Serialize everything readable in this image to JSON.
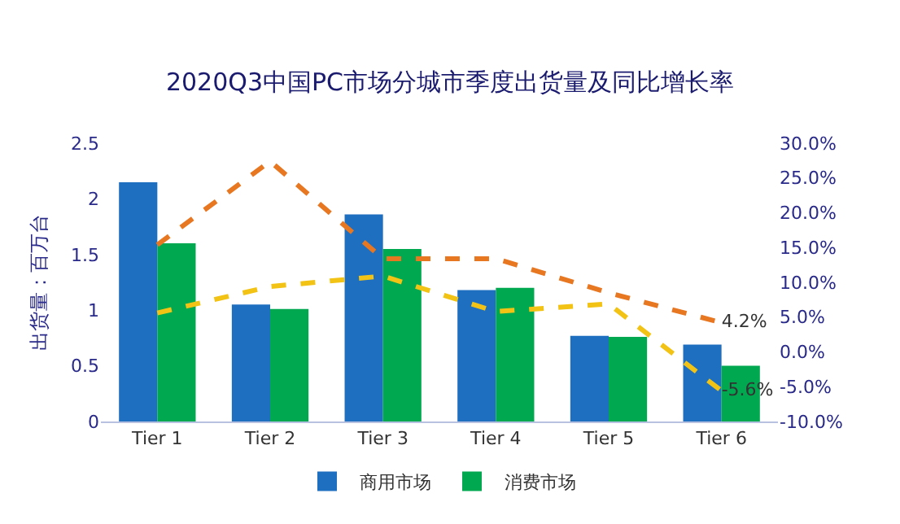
{
  "chart_data": {
    "type": "bar",
    "title": "2020Q3中国PC市场分城市季度出货量及同比增长率",
    "ylabel": "出货量：百万台",
    "categories": [
      "Tier 1",
      "Tier 2",
      "Tier 3",
      "Tier 4",
      "Tier 5",
      "Tier 6"
    ],
    "series": [
      {
        "name": "商用市场",
        "color": "#1f6fc0",
        "values": [
          2.15,
          1.05,
          1.86,
          1.18,
          0.77,
          0.69
        ]
      },
      {
        "name": "消费市场",
        "color": "#00a84f",
        "values": [
          1.6,
          1.01,
          1.55,
          1.2,
          0.76,
          0.5
        ]
      },
      {
        "type": "line",
        "axis": "y2",
        "color": "#e87722",
        "line_style": "dashed",
        "values": [
          15.4,
          27.4,
          13.4,
          13.4,
          8.5,
          4.2
        ],
        "value_labels": [
          null,
          null,
          null,
          null,
          null,
          "4.2%"
        ]
      },
      {
        "type": "line",
        "axis": "y2",
        "color": "#f2c314",
        "line_style": "dashed",
        "values": [
          5.6,
          9.4,
          10.9,
          5.8,
          6.9,
          -5.6
        ],
        "value_labels": [
          null,
          null,
          null,
          null,
          null,
          "-5.6%"
        ]
      }
    ],
    "ylim": [
      0,
      2.5
    ],
    "yticks": [
      0,
      0.5,
      1,
      1.5,
      2,
      2.5
    ],
    "y2lim": [
      -10,
      30
    ],
    "y2ticks": [
      {
        "value": -10,
        "label": "-10.0%"
      },
      {
        "value": -5,
        "label": "-5.0%"
      },
      {
        "value": 0,
        "label": "0.0%"
      },
      {
        "value": 5,
        "label": "5.0%"
      },
      {
        "value": 10,
        "label": "10.0%"
      },
      {
        "value": 15,
        "label": "15.0%"
      },
      {
        "value": 20,
        "label": "20.0%"
      },
      {
        "value": 25,
        "label": "25.0%"
      },
      {
        "value": 30,
        "label": "30.0%"
      }
    ],
    "grid": false,
    "legend": "bottom",
    "marker": "none"
  }
}
